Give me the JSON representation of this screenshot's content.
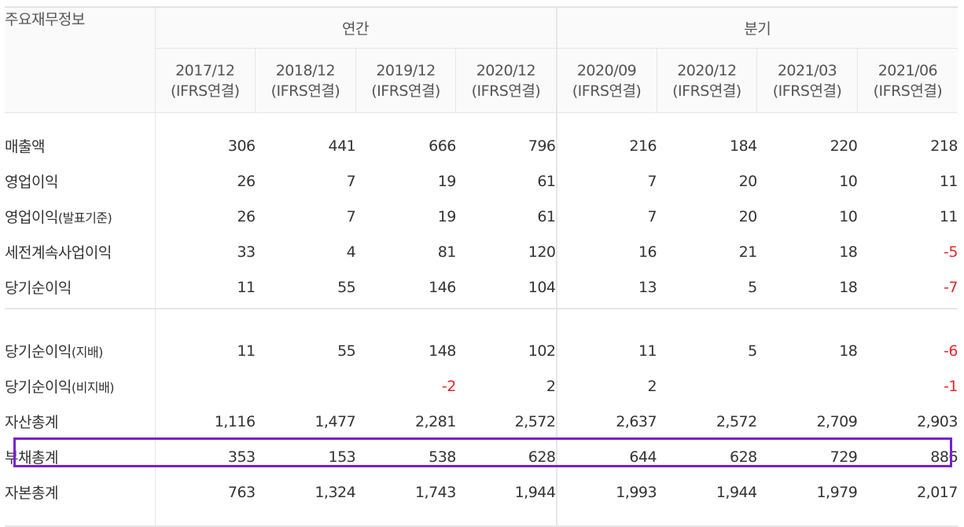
{
  "table": {
    "title": "주요재무정보",
    "groups": {
      "annual": "연간",
      "quarterly": "분기"
    },
    "columns": [
      {
        "period": "2017/12",
        "basis": "(IFRS연결)"
      },
      {
        "period": "2018/12",
        "basis": "(IFRS연결)"
      },
      {
        "period": "2019/12",
        "basis": "(IFRS연결)"
      },
      {
        "period": "2020/12",
        "basis": "(IFRS연결)"
      },
      {
        "period": "2020/09",
        "basis": "(IFRS연결)"
      },
      {
        "period": "2020/12",
        "basis": "(IFRS연결)"
      },
      {
        "period": "2021/03",
        "basis": "(IFRS연결)"
      },
      {
        "period": "2021/06",
        "basis": "(IFRS연결)"
      }
    ],
    "rows": [
      {
        "label": "매출액",
        "sub": "",
        "values": [
          "306",
          "441",
          "666",
          "796",
          "216",
          "184",
          "220",
          "218"
        ]
      },
      {
        "label": "영업이익",
        "sub": "",
        "values": [
          "26",
          "7",
          "19",
          "61",
          "7",
          "20",
          "10",
          "11"
        ]
      },
      {
        "label": "영업이익",
        "sub": "(발표기준)",
        "values": [
          "26",
          "7",
          "19",
          "61",
          "7",
          "20",
          "10",
          "11"
        ]
      },
      {
        "label": "세전계속사업이익",
        "sub": "",
        "values": [
          "33",
          "4",
          "81",
          "120",
          "16",
          "21",
          "18",
          "-5"
        ]
      },
      {
        "label": "당기순이익",
        "sub": "",
        "values": [
          "11",
          "55",
          "146",
          "104",
          "13",
          "5",
          "18",
          "-7"
        ]
      },
      {
        "label": "당기순이익",
        "sub": "(지배)",
        "values": [
          "11",
          "55",
          "148",
          "102",
          "11",
          "5",
          "18",
          "-6"
        ]
      },
      {
        "label": "당기순이익",
        "sub": "(비지배)",
        "values": [
          "",
          "",
          "-2",
          "2",
          "2",
          "",
          "",
          "-1"
        ]
      },
      {
        "label": "자산총계",
        "sub": "",
        "values": [
          "1,116",
          "1,477",
          "2,281",
          "2,572",
          "2,637",
          "2,572",
          "2,709",
          "2,903"
        ]
      },
      {
        "label": "부채총계",
        "sub": "",
        "values": [
          "353",
          "153",
          "538",
          "628",
          "644",
          "628",
          "729",
          "886"
        ]
      },
      {
        "label": "자본총계",
        "sub": "",
        "values": [
          "763",
          "1,324",
          "1,743",
          "1,944",
          "1,993",
          "1,944",
          "1,979",
          "2,017"
        ]
      }
    ],
    "highlighted_row": "부채총계",
    "colors": {
      "negative": "#e0262c",
      "highlight": "#7a1fd1",
      "header_bg": "#fafafa",
      "border": "#e6e6e6"
    }
  }
}
